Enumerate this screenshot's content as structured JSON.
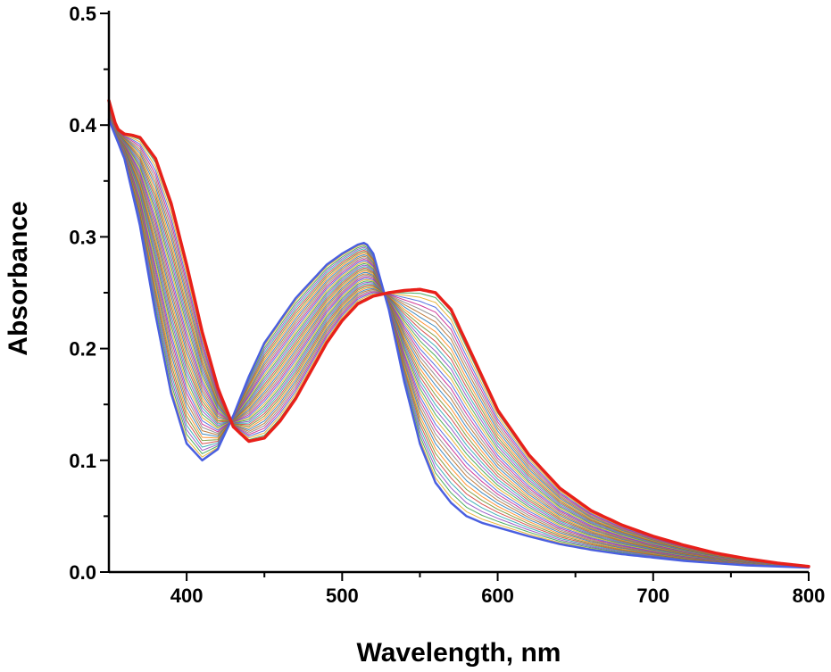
{
  "chart_data": {
    "type": "line",
    "title": "",
    "xlabel": "Wavelength, nm",
    "ylabel": "Absorbance",
    "xlim": [
      350,
      800
    ],
    "ylim": [
      0.0,
      0.5
    ],
    "x_ticks": [
      400,
      500,
      600,
      700,
      800
    ],
    "x_tick_labels": [
      "400",
      "500",
      "600",
      "700",
      "800"
    ],
    "y_ticks": [
      0.0,
      0.1,
      0.2,
      0.3,
      0.4,
      0.5
    ],
    "y_tick_labels": [
      "0.0",
      "0.1",
      "0.2",
      "0.3",
      "0.4",
      "0.5"
    ],
    "grid": false,
    "legend": "none",
    "series_colors": [
      "#3b5bdb",
      "#e6a817",
      "#2e9e44",
      "#8c3fbf",
      "#1fa2a8",
      "#d1342e",
      "#6b8e23",
      "#ff7f0e",
      "#1f77b4",
      "#b5651d",
      "#7f7f7f",
      "#c71585"
    ],
    "series": [
      {
        "color": "#4a5fe0",
        "x": [
          350,
          360,
          370,
          380,
          390,
          400,
          410,
          420,
          430,
          440,
          450,
          460,
          470,
          480,
          490,
          500,
          510,
          515,
          520,
          530,
          540,
          550,
          560,
          570,
          580,
          590,
          600,
          620,
          640,
          660,
          680,
          700,
          720,
          740,
          760,
          780,
          800
        ],
        "y": [
          0.405,
          0.37,
          0.31,
          0.23,
          0.16,
          0.115,
          0.1,
          0.11,
          0.14,
          0.175,
          0.205,
          0.225,
          0.245,
          0.26,
          0.275,
          0.285,
          0.293,
          0.295,
          0.285,
          0.235,
          0.17,
          0.115,
          0.08,
          0.062,
          0.05,
          0.044,
          0.04,
          0.032,
          0.025,
          0.02,
          0.016,
          0.013,
          0.01,
          0.008,
          0.006,
          0.005,
          0.004
        ]
      },
      {
        "color": "#e8201a",
        "x": [
          350,
          355,
          360,
          365,
          370,
          380,
          390,
          400,
          410,
          420,
          430,
          440,
          450,
          460,
          470,
          480,
          490,
          500,
          510,
          520,
          530,
          540,
          550,
          560,
          570,
          580,
          590,
          600,
          620,
          640,
          660,
          680,
          700,
          720,
          740,
          760,
          780,
          800
        ],
        "y": [
          0.422,
          0.397,
          0.392,
          0.391,
          0.389,
          0.37,
          0.33,
          0.275,
          0.215,
          0.165,
          0.13,
          0.117,
          0.12,
          0.135,
          0.155,
          0.18,
          0.205,
          0.225,
          0.24,
          0.247,
          0.25,
          0.252,
          0.253,
          0.25,
          0.235,
          0.205,
          0.175,
          0.145,
          0.105,
          0.075,
          0.055,
          0.042,
          0.032,
          0.024,
          0.017,
          0.012,
          0.008,
          0.005
        ]
      }
    ],
    "intermediate_traces": 38
  }
}
